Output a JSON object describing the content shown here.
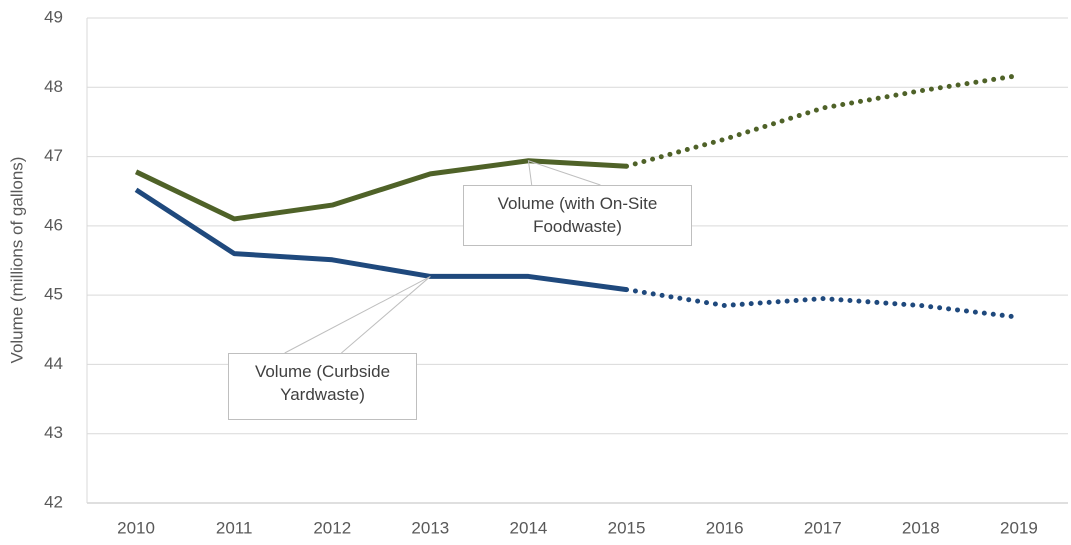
{
  "chart_data": {
    "type": "line",
    "y_label": "Volume (millions of gallons)",
    "categories": [
      "2010",
      "2011",
      "2012",
      "2013",
      "2014",
      "2015",
      "2016",
      "2017",
      "2018",
      "2019"
    ],
    "series": [
      {
        "name": "Volume (with On-Site Foodwaste)",
        "color": "#4f6228",
        "values": [
          46.78,
          46.1,
          46.3,
          46.75,
          46.94,
          46.86,
          null,
          null,
          null,
          null
        ],
        "forecast": [
          null,
          null,
          null,
          null,
          null,
          null,
          47.25,
          47.7,
          47.95,
          48.17
        ]
      },
      {
        "name": "Volume (Curbside Yardwaste)",
        "color": "#1f497d",
        "values": [
          46.52,
          45.6,
          45.51,
          45.27,
          45.27,
          45.08,
          null,
          null,
          null,
          null
        ],
        "forecast": [
          null,
          null,
          null,
          null,
          null,
          null,
          44.85,
          44.95,
          44.85,
          44.68
        ]
      }
    ],
    "ylim": [
      42,
      49
    ],
    "yticks": [
      42,
      43,
      44,
      45,
      46,
      47,
      48,
      49
    ],
    "grid": true
  }
}
